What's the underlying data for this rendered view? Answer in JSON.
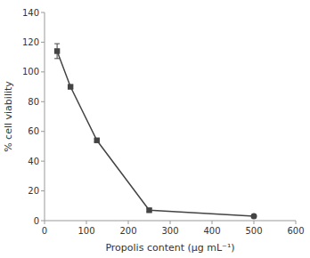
{
  "chart_data": {
    "type": "line",
    "xlabel": "Propolis content (μg mL⁻¹)",
    "ylabel": "% cell viability",
    "x": [
      30,
      62,
      125,
      250,
      500
    ],
    "values": [
      114,
      90,
      54,
      7,
      3
    ],
    "errors": [
      5,
      1,
      1,
      1,
      1
    ],
    "marker": [
      "square",
      "square",
      "square",
      "square",
      "circle"
    ],
    "color": "#444444",
    "xlim": [
      0,
      600
    ],
    "ylim": [
      0,
      140
    ],
    "xticks": [
      0,
      100,
      200,
      300,
      400,
      500,
      600
    ],
    "yticks": [
      0,
      20,
      40,
      60,
      80,
      100,
      120,
      140
    ],
    "grid": false
  }
}
